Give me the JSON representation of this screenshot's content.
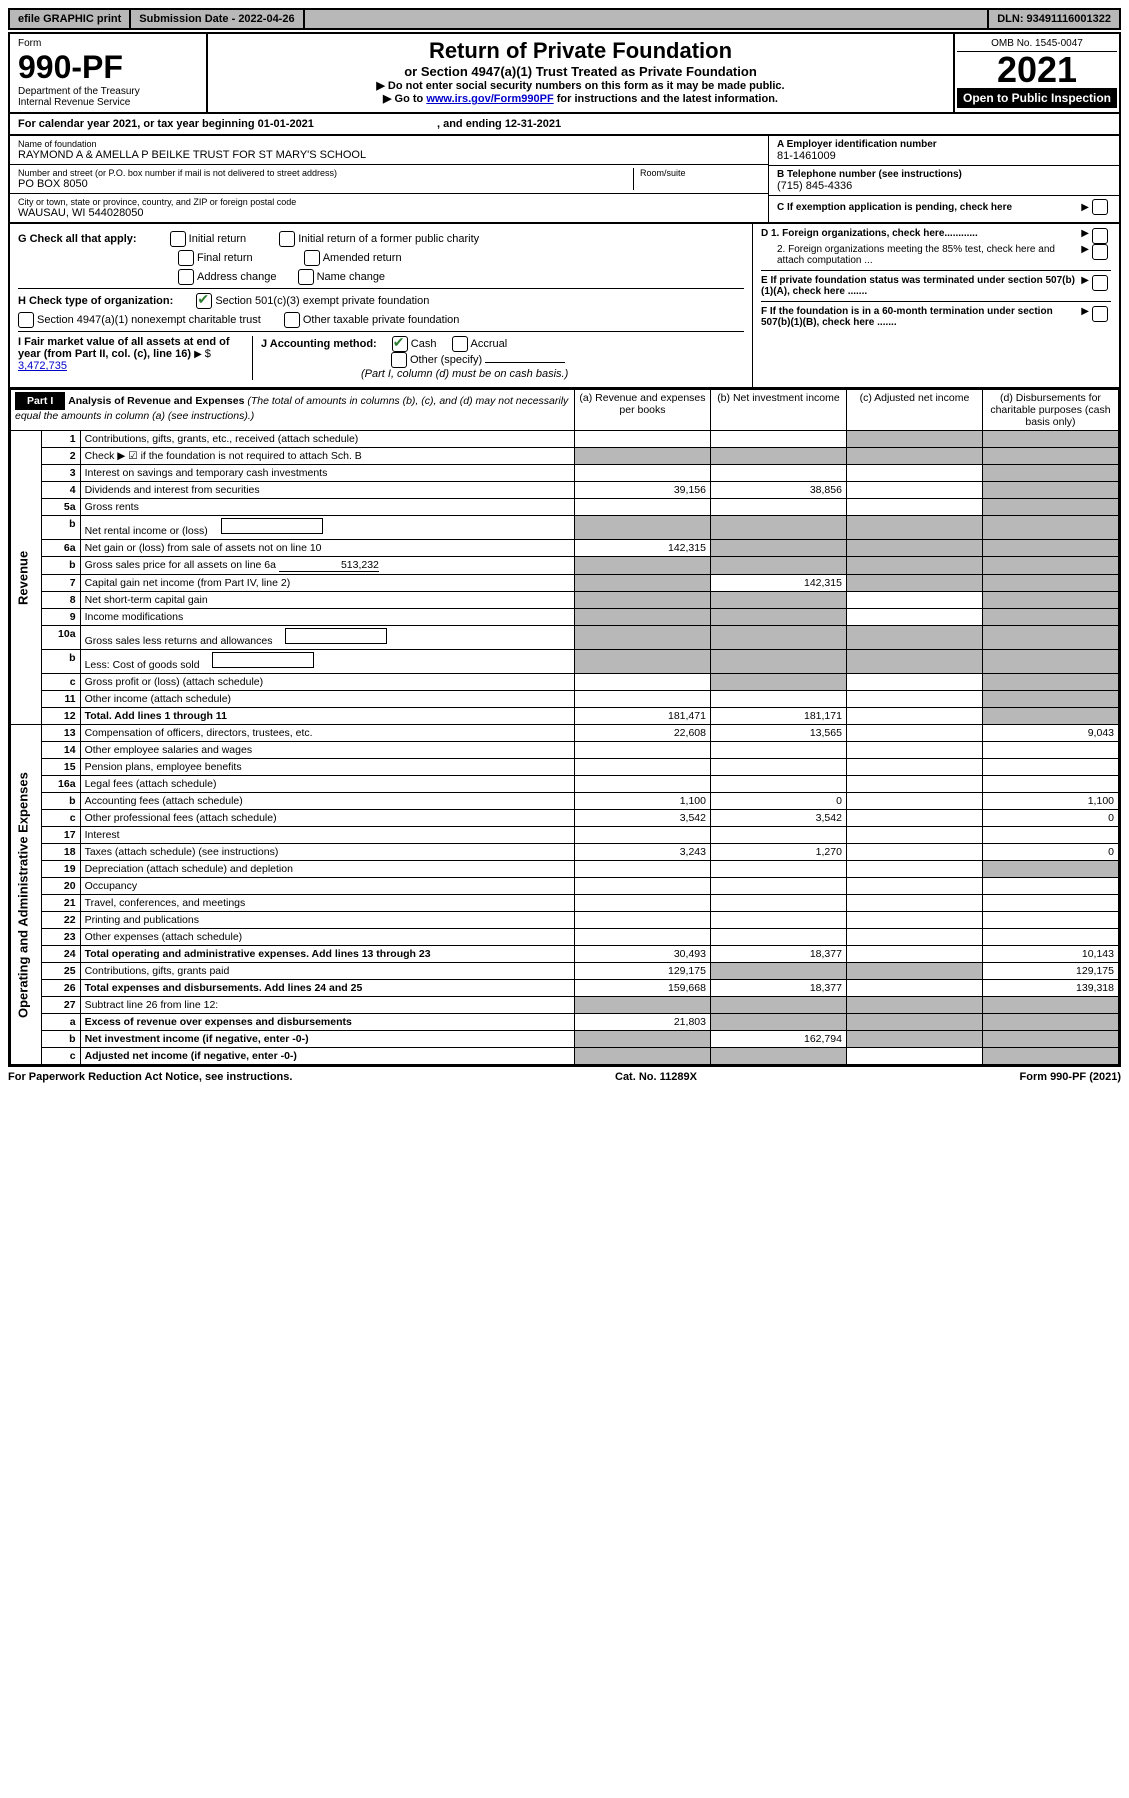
{
  "top": {
    "efile": "efile GRAPHIC print",
    "submission_label": "Submission Date - 2022-04-26",
    "dln": "DLN: 93491116001322"
  },
  "header": {
    "form_label": "Form",
    "form_number": "990-PF",
    "dept": "Department of the Treasury",
    "irs": "Internal Revenue Service",
    "title": "Return of Private Foundation",
    "subtitle": "or Section 4947(a)(1) Trust Treated as Private Foundation",
    "instr1": "▶ Do not enter social security numbers on this form as it may be made public.",
    "instr2_prefix": "▶ Go to ",
    "instr2_link": "www.irs.gov/Form990PF",
    "instr2_suffix": " for instructions and the latest information.",
    "omb": "OMB No. 1545-0047",
    "year": "2021",
    "open": "Open to Public Inspection"
  },
  "calendar": {
    "text_a": "For calendar year 2021, or tax year beginning 01-01-2021",
    "text_b": ", and ending 12-31-2021"
  },
  "identity": {
    "name_label": "Name of foundation",
    "name": "RAYMOND A & AMELLA P BEILKE TRUST FOR ST MARY'S SCHOOL",
    "addr_label": "Number and street (or P.O. box number if mail is not delivered to street address)",
    "addr": "PO BOX 8050",
    "room_label": "Room/suite",
    "city_label": "City or town, state or province, country, and ZIP or foreign postal code",
    "city": "WAUSAU, WI  544028050",
    "a_label": "A Employer identification number",
    "a_val": "81-1461009",
    "b_label": "B Telephone number (see instructions)",
    "b_val": "(715) 845-4336",
    "c_label": "C If exemption application is pending, check here"
  },
  "g_section": {
    "label": "G Check all that apply:",
    "opts": [
      "Initial return",
      "Initial return of a former public charity",
      "Final return",
      "Amended return",
      "Address change",
      "Name change"
    ]
  },
  "h_section": {
    "label": "H Check type of organization:",
    "opt1": "Section 501(c)(3) exempt private foundation",
    "opt2": "Section 4947(a)(1) nonexempt charitable trust",
    "opt3": "Other taxable private foundation"
  },
  "i_section": {
    "label": "I Fair market value of all assets at end of year (from Part II, col. (c), line 16)",
    "value": "3,472,735"
  },
  "j_section": {
    "label": "J Accounting method:",
    "cash": "Cash",
    "accrual": "Accrual",
    "other": "Other (specify)",
    "note": "(Part I, column (d) must be on cash basis.)"
  },
  "d_section": {
    "d1": "D 1. Foreign organizations, check here............",
    "d2": "2. Foreign organizations meeting the 85% test, check here and attach computation ...",
    "e": "E  If private foundation status was terminated under section 507(b)(1)(A), check here .......",
    "f": "F  If the foundation is in a 60-month termination under section 507(b)(1)(B), check here ......."
  },
  "part1": {
    "label": "Part I",
    "title": "Analysis of Revenue and Expenses",
    "note": " (The total of amounts in columns (b), (c), and (d) may not necessarily equal the amounts in column (a) (see instructions).)",
    "col_a": "(a) Revenue and expenses per books",
    "col_b": "(b) Net investment income",
    "col_c": "(c) Adjusted net income",
    "col_d": "(d) Disbursements for charitable purposes (cash basis only)"
  },
  "side_labels": {
    "revenue": "Revenue",
    "expenses": "Operating and Administrative Expenses"
  },
  "rows": [
    {
      "n": "1",
      "desc": "Contributions, gifts, grants, etc., received (attach schedule)",
      "a": "",
      "b": "",
      "c": "grey",
      "d": "grey"
    },
    {
      "n": "2",
      "desc": "Check ▶ ☑ if the foundation is not required to attach Sch. B",
      "a": "grey",
      "b": "grey",
      "c": "grey",
      "d": "grey",
      "bold_not": true
    },
    {
      "n": "3",
      "desc": "Interest on savings and temporary cash investments",
      "a": "",
      "b": "",
      "c": "",
      "d": "grey"
    },
    {
      "n": "4",
      "desc": "Dividends and interest from securities",
      "a": "39,156",
      "b": "38,856",
      "c": "",
      "d": "grey"
    },
    {
      "n": "5a",
      "desc": "Gross rents",
      "a": "",
      "b": "",
      "c": "",
      "d": "grey"
    },
    {
      "n": "b",
      "desc": "Net rental income or (loss)",
      "a": "grey",
      "b": "grey",
      "c": "grey",
      "d": "grey",
      "inline_box": true
    },
    {
      "n": "6a",
      "desc": "Net gain or (loss) from sale of assets not on line 10",
      "a": "142,315",
      "b": "grey",
      "c": "grey",
      "d": "grey"
    },
    {
      "n": "b",
      "desc": "Gross sales price for all assets on line 6a",
      "a": "grey",
      "b": "grey",
      "c": "grey",
      "d": "grey",
      "inline_val": "513,232"
    },
    {
      "n": "7",
      "desc": "Capital gain net income (from Part IV, line 2)",
      "a": "grey",
      "b": "142,315",
      "c": "grey",
      "d": "grey"
    },
    {
      "n": "8",
      "desc": "Net short-term capital gain",
      "a": "grey",
      "b": "grey",
      "c": "",
      "d": "grey"
    },
    {
      "n": "9",
      "desc": "Income modifications",
      "a": "grey",
      "b": "grey",
      "c": "",
      "d": "grey"
    },
    {
      "n": "10a",
      "desc": "Gross sales less returns and allowances",
      "a": "grey",
      "b": "grey",
      "c": "grey",
      "d": "grey",
      "inline_box": true
    },
    {
      "n": "b",
      "desc": "Less: Cost of goods sold",
      "a": "grey",
      "b": "grey",
      "c": "grey",
      "d": "grey",
      "inline_box": true
    },
    {
      "n": "c",
      "desc": "Gross profit or (loss) (attach schedule)",
      "a": "",
      "b": "grey",
      "c": "",
      "d": "grey"
    },
    {
      "n": "11",
      "desc": "Other income (attach schedule)",
      "a": "",
      "b": "",
      "c": "",
      "d": "grey"
    },
    {
      "n": "12",
      "desc": "Total. Add lines 1 through 11",
      "a": "181,471",
      "b": "181,171",
      "c": "",
      "d": "grey",
      "bold": true
    },
    {
      "n": "13",
      "desc": "Compensation of officers, directors, trustees, etc.",
      "a": "22,608",
      "b": "13,565",
      "c": "",
      "d": "9,043"
    },
    {
      "n": "14",
      "desc": "Other employee salaries and wages",
      "a": "",
      "b": "",
      "c": "",
      "d": ""
    },
    {
      "n": "15",
      "desc": "Pension plans, employee benefits",
      "a": "",
      "b": "",
      "c": "",
      "d": ""
    },
    {
      "n": "16a",
      "desc": "Legal fees (attach schedule)",
      "a": "",
      "b": "",
      "c": "",
      "d": ""
    },
    {
      "n": "b",
      "desc": "Accounting fees (attach schedule)",
      "a": "1,100",
      "b": "0",
      "c": "",
      "d": "1,100"
    },
    {
      "n": "c",
      "desc": "Other professional fees (attach schedule)",
      "a": "3,542",
      "b": "3,542",
      "c": "",
      "d": "0"
    },
    {
      "n": "17",
      "desc": "Interest",
      "a": "",
      "b": "",
      "c": "",
      "d": ""
    },
    {
      "n": "18",
      "desc": "Taxes (attach schedule) (see instructions)",
      "a": "3,243",
      "b": "1,270",
      "c": "",
      "d": "0"
    },
    {
      "n": "19",
      "desc": "Depreciation (attach schedule) and depletion",
      "a": "",
      "b": "",
      "c": "",
      "d": "grey"
    },
    {
      "n": "20",
      "desc": "Occupancy",
      "a": "",
      "b": "",
      "c": "",
      "d": ""
    },
    {
      "n": "21",
      "desc": "Travel, conferences, and meetings",
      "a": "",
      "b": "",
      "c": "",
      "d": ""
    },
    {
      "n": "22",
      "desc": "Printing and publications",
      "a": "",
      "b": "",
      "c": "",
      "d": ""
    },
    {
      "n": "23",
      "desc": "Other expenses (attach schedule)",
      "a": "",
      "b": "",
      "c": "",
      "d": ""
    },
    {
      "n": "24",
      "desc": "Total operating and administrative expenses. Add lines 13 through 23",
      "a": "30,493",
      "b": "18,377",
      "c": "",
      "d": "10,143",
      "bold": true
    },
    {
      "n": "25",
      "desc": "Contributions, gifts, grants paid",
      "a": "129,175",
      "b": "grey",
      "c": "grey",
      "d": "129,175"
    },
    {
      "n": "26",
      "desc": "Total expenses and disbursements. Add lines 24 and 25",
      "a": "159,668",
      "b": "18,377",
      "c": "",
      "d": "139,318",
      "bold": true
    },
    {
      "n": "27",
      "desc": "Subtract line 26 from line 12:",
      "a": "grey",
      "b": "grey",
      "c": "grey",
      "d": "grey"
    },
    {
      "n": "a",
      "desc": "Excess of revenue over expenses and disbursements",
      "a": "21,803",
      "b": "grey",
      "c": "grey",
      "d": "grey",
      "bold": true
    },
    {
      "n": "b",
      "desc": "Net investment income (if negative, enter -0-)",
      "a": "grey",
      "b": "162,794",
      "c": "grey",
      "d": "grey",
      "bold": true
    },
    {
      "n": "c",
      "desc": "Adjusted net income (if negative, enter -0-)",
      "a": "grey",
      "b": "grey",
      "c": "",
      "d": "grey",
      "bold": true
    }
  ],
  "footer": {
    "left": "For Paperwork Reduction Act Notice, see instructions.",
    "center": "Cat. No. 11289X",
    "right": "Form 990-PF (2021)"
  }
}
